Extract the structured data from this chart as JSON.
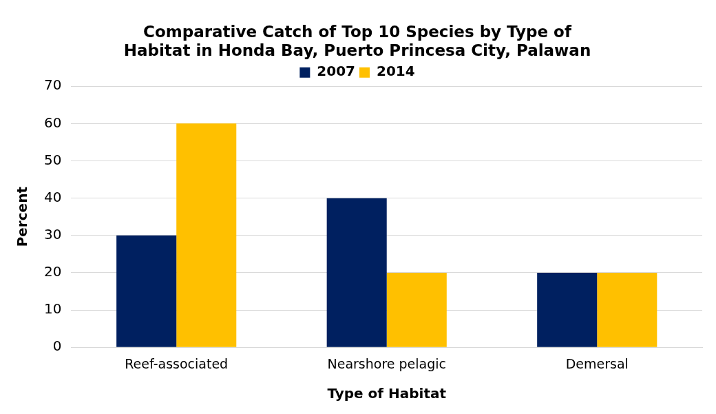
{
  "chart_data": {
    "type": "bar",
    "title": [
      "Comparative Catch of Top 10 Species by Type of",
      "Habitat in Honda Bay, Puerto Princesa City, Palawan"
    ],
    "xlabel": "Type of Habitat",
    "ylabel": "Percent",
    "categories": [
      "Reef-associated",
      "Nearshore pelagic",
      "Demersal"
    ],
    "series": [
      {
        "name": "2007",
        "color": "#002060",
        "values": [
          30,
          40,
          20
        ]
      },
      {
        "name": "2014",
        "color": "#ffc000",
        "values": [
          60,
          20,
          20
        ]
      }
    ],
    "ylim": [
      0,
      70
    ],
    "yticks": [
      0,
      10,
      20,
      30,
      40,
      50,
      60,
      70
    ],
    "grid": "y",
    "legend": "top"
  }
}
